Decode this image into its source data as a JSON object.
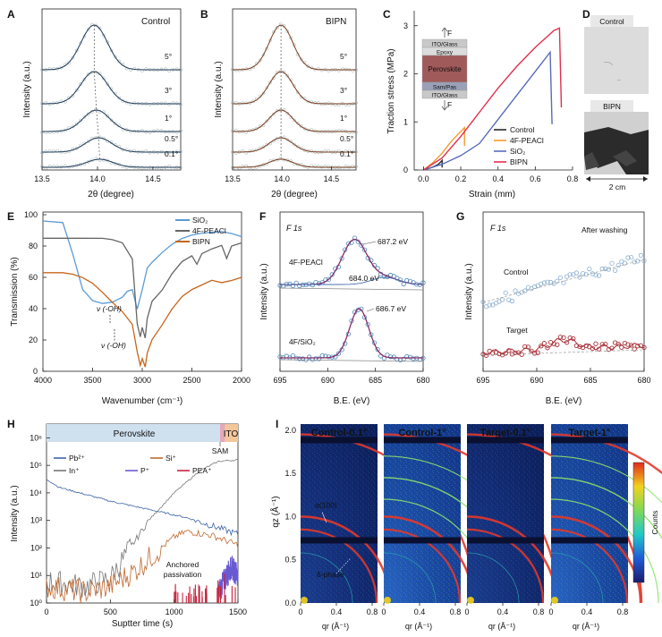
{
  "colors": {
    "control": "#2a2a2a",
    "peacl": "#f39a2e",
    "sio2": "#5a6bb8",
    "bipn": "#e0304e",
    "ftir_sio2": "#5b9bd5",
    "ftir_peacl": "#666666",
    "ftir_bipn": "#c8651b",
    "xps_fit": "#8a2f6b",
    "xps_data": "#4d86b6",
    "xps_target": "#a8333a",
    "pb": "#3d63a8",
    "si": "#c0692f",
    "in": "#777777",
    "p": "#6a5ad1",
    "pea": "#c4233c"
  },
  "chart_data": [
    {
      "id": "A",
      "type": "line",
      "label": "A",
      "title": "Control",
      "xlabel": "2θ (degree)",
      "ylabel": "Intensity (a.u.)",
      "xlim": [
        13.5,
        14.75
      ],
      "xticks": [
        "13.5",
        "14.0",
        "14.5"
      ],
      "series": [
        {
          "name": "5°",
          "center": 13.97
        },
        {
          "name": "3°",
          "center": 13.97
        },
        {
          "name": "1°",
          "center": 13.99
        },
        {
          "name": "0.5°",
          "center": 14.01
        },
        {
          "name": "0.1°",
          "center": 14.02
        }
      ]
    },
    {
      "id": "B",
      "type": "line",
      "label": "B",
      "title": "BIPN",
      "xlabel": "2θ (degree)",
      "ylabel": "Intensity (a.u.)",
      "xlim": [
        13.5,
        14.75
      ],
      "xticks": [
        "13.5",
        "14.0",
        "14.5"
      ],
      "series": [
        {
          "name": "5°",
          "center": 13.99
        },
        {
          "name": "3°",
          "center": 13.99
        },
        {
          "name": "1°",
          "center": 13.99
        },
        {
          "name": "0.5°",
          "center": 13.99
        },
        {
          "name": "0.1°",
          "center": 13.99
        }
      ]
    },
    {
      "id": "C",
      "type": "line",
      "label": "C",
      "xlabel": "Strain (mm)",
      "ylabel": "Traction stress (MPa)",
      "xlim": [
        -0.05,
        0.8
      ],
      "ylim": [
        0,
        3.2
      ],
      "xticks": [
        0.0,
        0.2,
        0.4,
        0.6,
        0.8
      ],
      "yticks": [
        0,
        1,
        2,
        3
      ],
      "stack_layers": [
        "F",
        "ITO/Glass",
        "Epoxy",
        "Perovskite",
        "Sam/Pas",
        "ITO/Glass",
        "F"
      ],
      "series": [
        {
          "name": "Control",
          "color_key": "control",
          "x": [
            0,
            0.05,
            0.08,
            0.1,
            0.1
          ],
          "y": [
            0,
            0.06,
            0.12,
            0.2,
            0.05
          ]
        },
        {
          "name": "4F-PEACl",
          "color_key": "peacl",
          "x": [
            0,
            0.05,
            0.1,
            0.15,
            0.22,
            0.22
          ],
          "y": [
            0,
            0.15,
            0.35,
            0.6,
            0.88,
            0.5
          ]
        },
        {
          "name": "SiO2",
          "color_key": "sio2",
          "x": [
            0,
            0.1,
            0.2,
            0.3,
            0.4,
            0.5,
            0.6,
            0.68,
            0.69
          ],
          "y": [
            0,
            0.12,
            0.3,
            0.55,
            1.05,
            1.55,
            2.05,
            2.45,
            0.95
          ]
        },
        {
          "name": "BIPN",
          "color_key": "bipn",
          "x": [
            0,
            0.1,
            0.2,
            0.3,
            0.4,
            0.5,
            0.6,
            0.7,
            0.73,
            0.74
          ],
          "y": [
            0,
            0.25,
            0.7,
            1.2,
            1.7,
            2.15,
            2.55,
            2.9,
            2.95,
            1.3
          ]
        }
      ]
    },
    {
      "id": "E",
      "type": "line",
      "label": "E",
      "xlabel": "Wavenumber (cm⁻¹)",
      "ylabel": "Transmission (%)",
      "xlim": [
        4000,
        2000
      ],
      "ylim": [
        0,
        100
      ],
      "xticks": [
        4000,
        3500,
        3000,
        2500,
        2000
      ],
      "yticks": [
        0,
        20,
        40,
        60,
        80,
        100
      ],
      "annotation": "ν (-OH)",
      "series": [
        {
          "name": "SiO2",
          "color_key": "ftir_sio2",
          "x": [
            4000,
            3800,
            3700,
            3600,
            3500,
            3400,
            3300,
            3200,
            3150,
            3100,
            3050,
            3000,
            2950,
            2900,
            2800,
            2700,
            2600,
            2500,
            2400,
            2300,
            2200,
            2100,
            2000
          ],
          "y": [
            96,
            95,
            75,
            52,
            45,
            43,
            44,
            47,
            51,
            52,
            40,
            52,
            66,
            70,
            76,
            81,
            85,
            87,
            88,
            89,
            89,
            88,
            86
          ]
        },
        {
          "name": "4F-PEACl",
          "color_key": "ftir_peacl",
          "x": [
            4000,
            3800,
            3600,
            3400,
            3300,
            3200,
            3100,
            3050,
            3020,
            3000,
            2970,
            2950,
            2900,
            2850,
            2800,
            2700,
            2600,
            2500,
            2450,
            2400,
            2300,
            2200,
            2150,
            2100,
            2000
          ],
          "y": [
            85,
            85,
            85,
            85,
            84,
            82,
            72,
            30,
            22,
            28,
            21,
            34,
            45,
            48,
            52,
            62,
            70,
            74,
            68,
            75,
            78,
            80,
            72,
            80,
            82
          ]
        },
        {
          "name": "BIPN",
          "color_key": "ftir_bipn",
          "x": [
            4000,
            3800,
            3700,
            3600,
            3500,
            3400,
            3300,
            3200,
            3100,
            3050,
            3020,
            3000,
            2970,
            2950,
            2900,
            2800,
            2700,
            2600,
            2500,
            2400,
            2300,
            2200,
            2100,
            2000
          ],
          "y": [
            63,
            63,
            62,
            60,
            56,
            50,
            44,
            38,
            30,
            12,
            4,
            8,
            3,
            12,
            20,
            30,
            40,
            48,
            52,
            55,
            58,
            57,
            58,
            60
          ]
        }
      ]
    },
    {
      "id": "F",
      "type": "scatter",
      "label": "F",
      "title": "F 1s",
      "xlabel": "B.E. (eV)",
      "ylabel": "Intensity (a.u.)",
      "xlim": [
        695,
        680
      ],
      "xticks": [
        695,
        690,
        685,
        680
      ],
      "traces": [
        {
          "name": "4F-PEACl",
          "peaks": [
            "687.2 eV",
            "684.0 eV"
          ],
          "centers": [
            687.2,
            684.0
          ]
        },
        {
          "name": "4F/SiO2",
          "peaks": [
            "686.7 eV"
          ],
          "centers": [
            686.7
          ]
        }
      ]
    },
    {
      "id": "G",
      "type": "scatter",
      "label": "G",
      "title": "F 1s",
      "subtitle": "After washing",
      "xlabel": "B.E. (eV)",
      "ylabel": "Intensity (a.u.)",
      "xlim": [
        695,
        680
      ],
      "xticks": [
        695,
        690,
        685,
        680
      ],
      "traces": [
        {
          "name": "Control",
          "trend": "rising"
        },
        {
          "name": "Target",
          "peak_center": 687.5
        }
      ]
    },
    {
      "id": "H",
      "type": "line",
      "label": "H",
      "xlabel": "Suptter time (s)",
      "ylabel": "Intensity (a.u.)",
      "xlim": [
        0,
        1500
      ],
      "ylim_log10": [
        0,
        6.5
      ],
      "xticks": [
        0,
        500,
        1000,
        1500
      ],
      "yticks": [
        "10⁰",
        "10¹",
        "10²",
        "10³",
        "10⁴",
        "10⁵",
        "10⁶"
      ],
      "band_labels": [
        "Perovskite",
        "ITO",
        "SAM"
      ],
      "annotation": "Anchored passivation",
      "series": [
        {
          "name": "Pb2+",
          "color_key": "pb",
          "x": [
            0,
            100,
            300,
            500,
            700,
            900,
            1100,
            1300,
            1500
          ],
          "log10y": [
            4.5,
            4.2,
            3.95,
            3.7,
            3.5,
            3.3,
            3.1,
            2.8,
            2.5
          ]
        },
        {
          "name": "In+",
          "color_key": "in",
          "x": [
            0,
            300,
            500,
            600,
            800,
            1000,
            1200,
            1350,
            1500
          ],
          "log10y": [
            0.8,
            0.6,
            0.9,
            1.6,
            3.0,
            4.0,
            4.8,
            5.15,
            5.2
          ]
        },
        {
          "name": "Si+",
          "color_key": "si",
          "x": [
            0,
            300,
            500,
            700,
            900,
            1000,
            1100,
            1300,
            1500
          ],
          "log10y": [
            0.6,
            0.4,
            0.6,
            1.2,
            2.0,
            2.4,
            2.6,
            2.45,
            2.1
          ]
        },
        {
          "name": "P+",
          "color_key": "p",
          "x": [
            1350,
            1400,
            1450,
            1500
          ],
          "log10y": [
            0.4,
            0.9,
            1.3,
            1.0
          ]
        },
        {
          "name": "PEA+",
          "color_key": "pea",
          "x": [
            1000,
            1500
          ],
          "log10y": [
            0.2,
            0.6
          ]
        }
      ]
    },
    {
      "id": "I",
      "type": "heatmap",
      "label": "I",
      "xlabel": "qr (Å⁻¹)",
      "ylabel": "qz (Å⁻¹)",
      "xticks": [
        0,
        0.4,
        0.8
      ],
      "yticks": [
        0,
        0.5,
        1.0,
        1.5,
        2.0
      ],
      "colorbar_label": "Counts",
      "rings": [
        {
          "name": "α(100)",
          "q": 1.0
        },
        {
          "name": "δ-phase",
          "q": 0.82
        }
      ],
      "panels": [
        "Control-0.1°",
        "Control-1°",
        "Target-0.1°",
        "Target-1°"
      ]
    }
  ],
  "panel_D": {
    "label": "D",
    "images": [
      "Control",
      "BIPN"
    ],
    "scale": "2 cm"
  }
}
